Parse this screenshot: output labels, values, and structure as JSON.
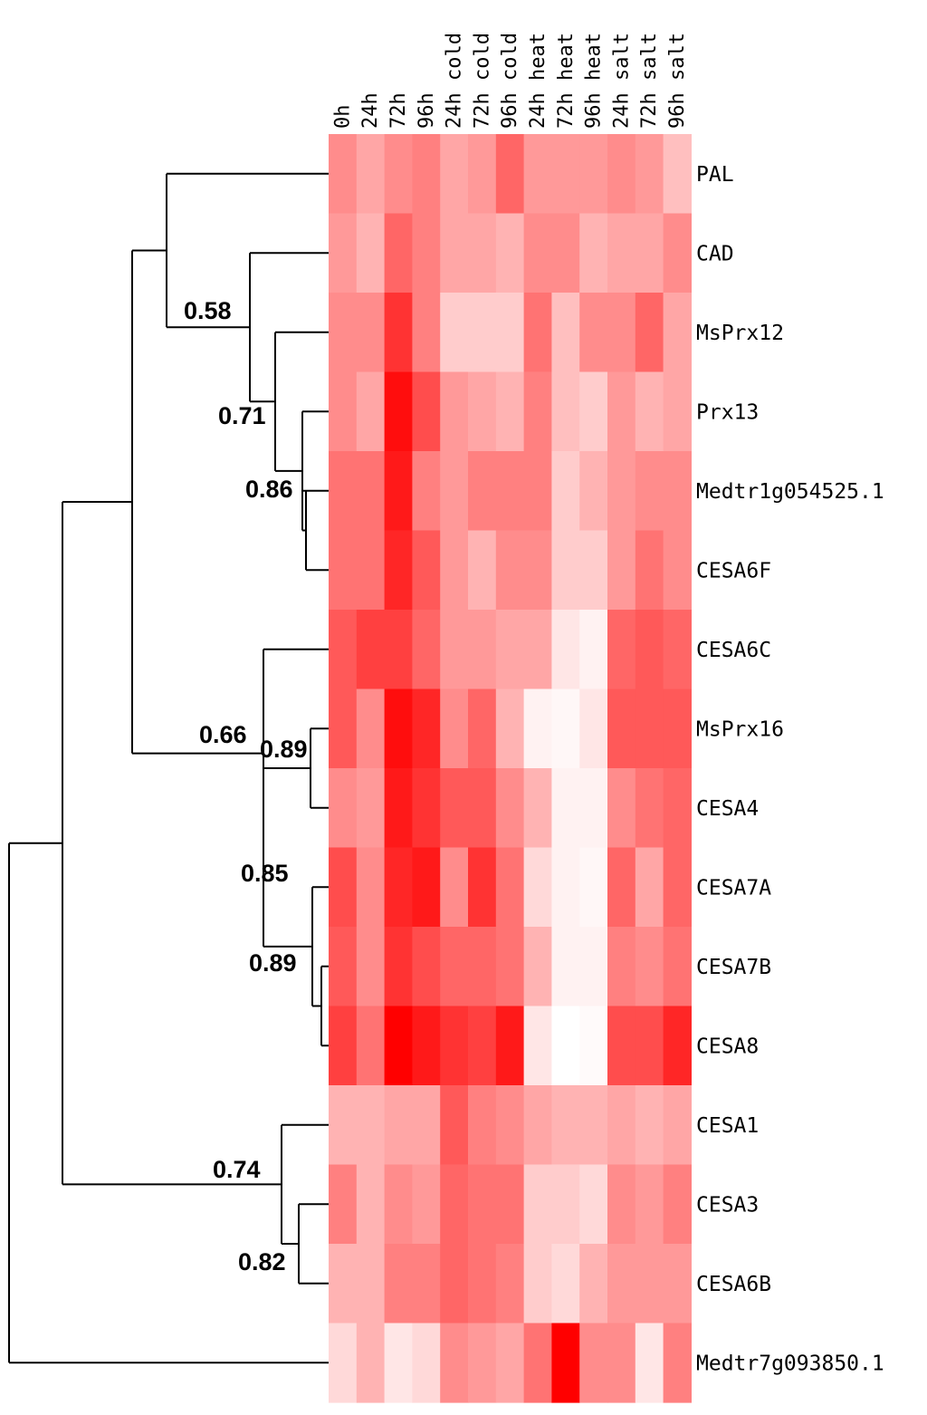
{
  "chart_data": {
    "type": "heatmap",
    "columns": [
      "0h",
      "24h",
      "72h",
      "96h",
      "24h cold",
      "72h cold",
      "96h cold",
      "24h heat",
      "72h heat",
      "96h heat",
      "24h salt",
      "72h salt",
      "96h salt"
    ],
    "rows": [
      "PAL",
      "CAD",
      "MsPrx12",
      "Prx13",
      "Medtr1g054525.1",
      "CESA6F",
      "CESA6C",
      "MsPrx16",
      "CESA4",
      "CESA7A",
      "CESA7B",
      "CESA8",
      "CESA1",
      "CESA3",
      "CESA6B",
      "Medtr7g093850.1"
    ],
    "values": [
      [
        0.45,
        0.35,
        0.45,
        0.5,
        0.35,
        0.4,
        0.6,
        0.4,
        0.4,
        0.4,
        0.45,
        0.4,
        0.25
      ],
      [
        0.4,
        0.3,
        0.6,
        0.5,
        0.35,
        0.35,
        0.3,
        0.45,
        0.45,
        0.3,
        0.35,
        0.35,
        0.45
      ],
      [
        0.45,
        0.45,
        0.8,
        0.5,
        0.2,
        0.2,
        0.2,
        0.55,
        0.25,
        0.45,
        0.45,
        0.6,
        0.35
      ],
      [
        0.45,
        0.35,
        0.95,
        0.7,
        0.4,
        0.35,
        0.3,
        0.5,
        0.25,
        0.2,
        0.4,
        0.3,
        0.35
      ],
      [
        0.55,
        0.55,
        0.9,
        0.5,
        0.4,
        0.5,
        0.5,
        0.5,
        0.2,
        0.3,
        0.4,
        0.45,
        0.45
      ],
      [
        0.55,
        0.55,
        0.85,
        0.65,
        0.4,
        0.3,
        0.45,
        0.45,
        0.2,
        0.2,
        0.4,
        0.55,
        0.45
      ],
      [
        0.65,
        0.75,
        0.75,
        0.6,
        0.4,
        0.4,
        0.35,
        0.35,
        0.1,
        0.05,
        0.6,
        0.65,
        0.6
      ],
      [
        0.65,
        0.45,
        0.95,
        0.85,
        0.45,
        0.6,
        0.3,
        0.05,
        0.03,
        0.1,
        0.65,
        0.65,
        0.65
      ],
      [
        0.45,
        0.4,
        0.9,
        0.8,
        0.65,
        0.65,
        0.45,
        0.3,
        0.05,
        0.05,
        0.45,
        0.55,
        0.6
      ],
      [
        0.7,
        0.45,
        0.85,
        0.9,
        0.45,
        0.8,
        0.55,
        0.15,
        0.05,
        0.03,
        0.6,
        0.35,
        0.6
      ],
      [
        0.65,
        0.45,
        0.8,
        0.7,
        0.6,
        0.6,
        0.55,
        0.3,
        0.05,
        0.05,
        0.5,
        0.45,
        0.55
      ],
      [
        0.75,
        0.55,
        1.0,
        0.9,
        0.8,
        0.75,
        0.9,
        0.1,
        0.0,
        0.02,
        0.7,
        0.7,
        0.85
      ],
      [
        0.3,
        0.3,
        0.35,
        0.35,
        0.65,
        0.5,
        0.45,
        0.35,
        0.3,
        0.3,
        0.35,
        0.3,
        0.35
      ],
      [
        0.5,
        0.3,
        0.45,
        0.4,
        0.6,
        0.55,
        0.55,
        0.2,
        0.2,
        0.15,
        0.45,
        0.4,
        0.5
      ],
      [
        0.3,
        0.3,
        0.5,
        0.5,
        0.6,
        0.55,
        0.5,
        0.2,
        0.15,
        0.3,
        0.4,
        0.4,
        0.4
      ],
      [
        0.15,
        0.3,
        0.1,
        0.15,
        0.45,
        0.4,
        0.35,
        0.55,
        1.0,
        0.45,
        0.45,
        0.1,
        0.5
      ]
    ],
    "color_scale": {
      "low": "#ffffff",
      "high": "#ff0000"
    },
    "node_labels": [
      "0.58",
      "0.71",
      "0.86",
      "0.66",
      "0.89",
      "0.85",
      "0.89",
      "0.74",
      "0.82"
    ]
  }
}
